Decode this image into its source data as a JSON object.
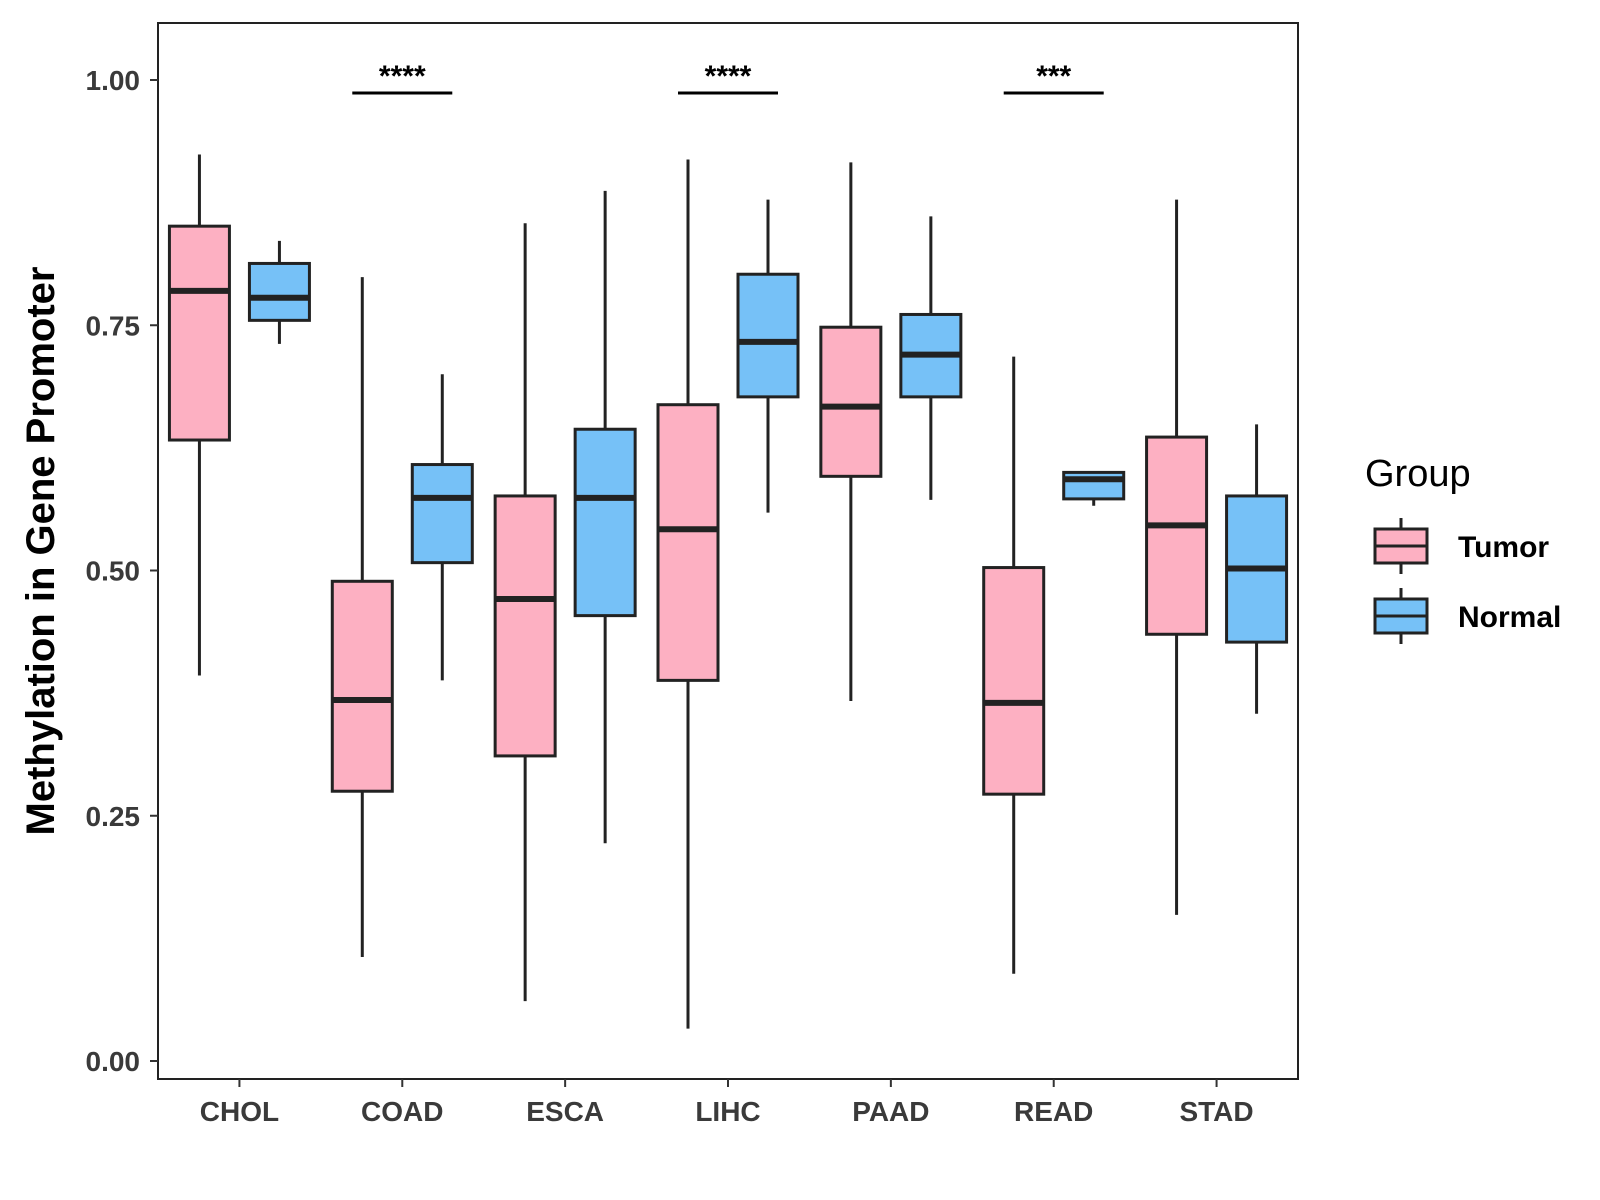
{
  "chart_data": {
    "type": "boxplot",
    "title": "",
    "xlabel": "",
    "ylabel": "Methylation in Gene Promoter",
    "ylim": [
      -0.015,
      1.058
    ],
    "yticks": [
      0.0,
      0.25,
      0.5,
      0.75,
      1.0
    ],
    "ytick_labels": [
      "0.00",
      "0.25",
      "0.50",
      "0.75",
      "1.00"
    ],
    "grid": false,
    "legend_position": "right",
    "categories": [
      "CHOL",
      "COAD",
      "ESCA",
      "LIHC",
      "PAAD",
      "READ",
      "STAD"
    ],
    "series": [
      {
        "name": "Tumor",
        "color": "#FDB0C2",
        "boxes": [
          {
            "min": 0.393,
            "q1": 0.633,
            "median": 0.785,
            "q3": 0.851,
            "max": 0.924
          },
          {
            "min": 0.106,
            "q1": 0.275,
            "median": 0.368,
            "q3": 0.489,
            "max": 0.799
          },
          {
            "min": 0.061,
            "q1": 0.311,
            "median": 0.471,
            "q3": 0.576,
            "max": 0.854
          },
          {
            "min": 0.033,
            "q1": 0.388,
            "median": 0.542,
            "q3": 0.669,
            "max": 0.919
          },
          {
            "min": 0.367,
            "q1": 0.596,
            "median": 0.667,
            "q3": 0.748,
            "max": 0.916
          },
          {
            "min": 0.089,
            "q1": 0.272,
            "median": 0.365,
            "q3": 0.503,
            "max": 0.718
          },
          {
            "min": 0.149,
            "q1": 0.435,
            "median": 0.546,
            "q3": 0.636,
            "max": 0.878
          }
        ]
      },
      {
        "name": "Normal",
        "color": "#76C1F7",
        "boxes": [
          {
            "min": 0.731,
            "q1": 0.755,
            "median": 0.778,
            "q3": 0.813,
            "max": 0.836
          },
          {
            "min": 0.388,
            "q1": 0.508,
            "median": 0.574,
            "q3": 0.608,
            "max": 0.7
          },
          {
            "min": 0.222,
            "q1": 0.454,
            "median": 0.574,
            "q3": 0.644,
            "max": 0.887
          },
          {
            "min": 0.559,
            "q1": 0.677,
            "median": 0.733,
            "q3": 0.802,
            "max": 0.878
          },
          {
            "min": 0.572,
            "q1": 0.677,
            "median": 0.72,
            "q3": 0.761,
            "max": 0.861
          },
          {
            "min": 0.566,
            "q1": 0.573,
            "median": 0.593,
            "q3": 0.6,
            "max": 0.601
          },
          {
            "min": 0.354,
            "q1": 0.427,
            "median": 0.502,
            "q3": 0.576,
            "max": 0.649
          }
        ]
      }
    ],
    "significance": [
      {
        "category": "COAD",
        "label": "****"
      },
      {
        "category": "LIHC",
        "label": "****"
      },
      {
        "category": "READ",
        "label": "***"
      }
    ],
    "legend": {
      "title": "Group",
      "entries": [
        "Tumor",
        "Normal"
      ]
    }
  }
}
